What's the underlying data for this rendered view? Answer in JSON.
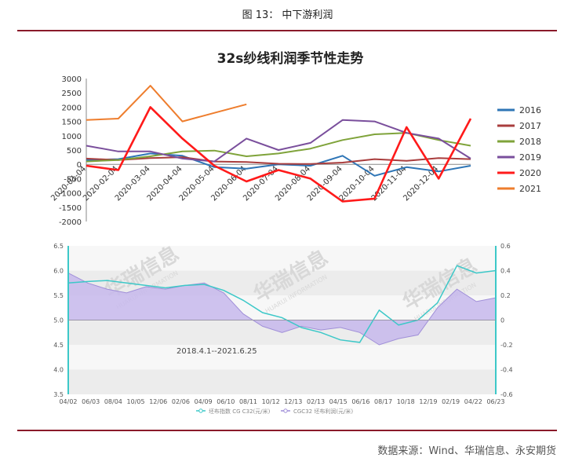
{
  "figure_caption": "图 13： 中下游利润",
  "source": "数据来源：Wind、华瑞信息、永安期货",
  "chart_data": [
    {
      "type": "line",
      "title": "32s纱线利润季节性走势",
      "ylim": [
        -2000,
        3000
      ],
      "yticks": [
        "3000",
        "2500",
        "2000",
        "1500",
        "1000",
        "500",
        "0",
        "-500",
        "-1000",
        "-1500",
        "-2000"
      ],
      "xticks": [
        "2020-01-04",
        "2020-02-04",
        "2020-03-04",
        "2020-04-04",
        "2020-05-04",
        "2020-06-04",
        "2020-07-04",
        "2020-08-04",
        "2020-09-04",
        "2020-10-04",
        "2020-11-04",
        "2020-12-04"
      ],
      "x_months": [
        0,
        1,
        2,
        3,
        4,
        5,
        6,
        7,
        8,
        9,
        10,
        11,
        12
      ],
      "legend_position": "right",
      "series": [
        {
          "name": "2016",
          "color": "#2e75b6",
          "values": [
            150,
            180,
            380,
            300,
            -100,
            -150,
            0,
            -50,
            300,
            -400,
            -100,
            -250,
            -50
          ]
        },
        {
          "name": "2017",
          "color": "#a93d3d",
          "values": [
            200,
            150,
            220,
            250,
            100,
            80,
            20,
            10,
            60,
            180,
            120,
            220,
            180
          ]
        },
        {
          "name": "2018",
          "color": "#7fa33a",
          "values": [
            100,
            150,
            280,
            450,
            480,
            280,
            380,
            550,
            850,
            1050,
            1100,
            850,
            650
          ]
        },
        {
          "name": "2019",
          "color": "#7a4f9c",
          "values": [
            650,
            450,
            450,
            200,
            100,
            900,
            500,
            750,
            1550,
            1500,
            1100,
            900,
            200
          ]
        },
        {
          "name": "2020",
          "color": "#ff1a1a",
          "values": [
            -50,
            -200,
            2000,
            900,
            -50,
            -600,
            -200,
            -500,
            -1300,
            -1200,
            1300,
            -500,
            1600
          ]
        },
        {
          "name": "2021",
          "color": "#ee7d2d",
          "values": [
            1550,
            1600,
            2750,
            1500,
            1800,
            2100,
            null,
            null,
            null,
            null,
            null,
            null,
            null
          ]
        }
      ]
    },
    {
      "type": "area",
      "subtitle": "2018.4.1--2021.6.25",
      "ylim_left": [
        3.5,
        6.5
      ],
      "ylim_right": [
        -0.6,
        0.6
      ],
      "yticks_left": [
        "6.5",
        "6.0",
        "5.5",
        "5.0",
        "4.5",
        "4.0",
        "3.5"
      ],
      "yticks_right": [
        "0.6",
        "0.4",
        "0.2",
        "0",
        "-0.2",
        "-0.4",
        "-0.6"
      ],
      "xticks": [
        "04/02",
        "06/03",
        "08/04",
        "10/05",
        "12/06",
        "02/06",
        "04/09",
        "06/10",
        "08/11",
        "10/12",
        "12/13",
        "02/13",
        "04/15",
        "06/16",
        "08/17",
        "10/18",
        "12/19",
        "02/19",
        "04/22",
        "06/23"
      ],
      "legend": [
        "坯布指数 CG C32(元/米)",
        "CGC32 坯布利润(元/米)"
      ],
      "watermark": "华瑞信息",
      "watermark_en": "HUARUI INFORMATION",
      "series": [
        {
          "name": "坯布指数 CG C32(元/米)",
          "axis": "left",
          "color": "#3cc8c8",
          "values": [
            5.75,
            5.78,
            5.8,
            5.75,
            5.7,
            5.65,
            5.7,
            5.72,
            5.6,
            5.4,
            5.15,
            5.05,
            4.85,
            4.75,
            4.6,
            4.55,
            5.2,
            4.9,
            5.0,
            5.35,
            6.1,
            5.95,
            6.0
          ]
        },
        {
          "name": "CGC32 坯布利润(元/米)",
          "axis": "right",
          "color": "#a08fd8",
          "values": [
            0.38,
            0.3,
            0.25,
            0.22,
            0.27,
            0.25,
            0.28,
            0.3,
            0.22,
            0.05,
            -0.05,
            -0.1,
            -0.05,
            -0.08,
            -0.06,
            -0.1,
            -0.2,
            -0.15,
            -0.12,
            0.1,
            0.25,
            0.15,
            0.18
          ]
        }
      ]
    }
  ]
}
